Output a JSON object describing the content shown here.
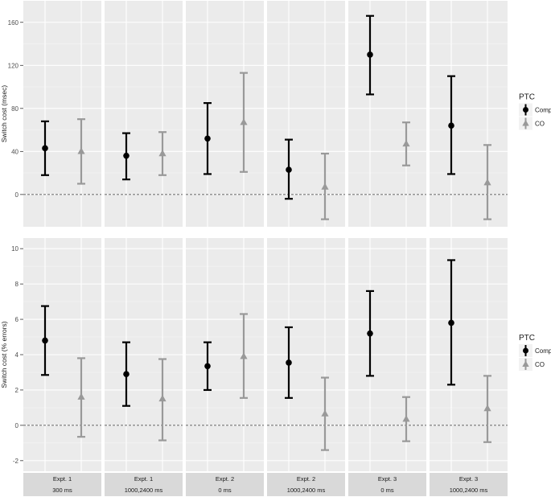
{
  "chart_data": [
    {
      "type": "errorbar",
      "title": "",
      "ylabel": "Switch cost (msec)",
      "ylim": [
        -30,
        180
      ],
      "yticks": [
        0,
        40,
        80,
        120,
        160
      ],
      "tick_labels": [
        "0",
        "40",
        "80",
        "120",
        "160"
      ],
      "reference_line": 0,
      "legend": {
        "title": "PTC",
        "position": "right",
        "entries": [
          "Compl",
          "CO"
        ]
      },
      "facets": [
        {
          "experiment": "Expt. 1",
          "condition": "300 ms",
          "series": [
            {
              "name": "Compl",
              "value": 43,
              "lower": 18,
              "upper": 68
            },
            {
              "name": "CO",
              "value": 40,
              "lower": 10,
              "upper": 70
            }
          ]
        },
        {
          "experiment": "Expt. 1",
          "condition": "1000,2400 ms",
          "series": [
            {
              "name": "Compl",
              "value": 36,
              "lower": 14,
              "upper": 57
            },
            {
              "name": "CO",
              "value": 38,
              "lower": 18,
              "upper": 58
            }
          ]
        },
        {
          "experiment": "Expt. 2",
          "condition": "0 ms",
          "series": [
            {
              "name": "Compl",
              "value": 52,
              "lower": 19,
              "upper": 85
            },
            {
              "name": "CO",
              "value": 67,
              "lower": 21,
              "upper": 113
            }
          ]
        },
        {
          "experiment": "Expt. 2",
          "condition": "1000,2400 ms",
          "series": [
            {
              "name": "Compl",
              "value": 23,
              "lower": -4,
              "upper": 51
            },
            {
              "name": "CO",
              "value": 7,
              "lower": -23,
              "upper": 38
            }
          ]
        },
        {
          "experiment": "Expt. 3",
          "condition": "0 ms",
          "series": [
            {
              "name": "Compl",
              "value": 130,
              "lower": 93,
              "upper": 166
            },
            {
              "name": "CO",
              "value": 47,
              "lower": 27,
              "upper": 67
            }
          ]
        },
        {
          "experiment": "Expt. 3",
          "condition": "1000,2400 ms",
          "series": [
            {
              "name": "Compl",
              "value": 64,
              "lower": 19,
              "upper": 110
            },
            {
              "name": "CO",
              "value": 11,
              "lower": -23,
              "upper": 46
            }
          ]
        }
      ]
    },
    {
      "type": "errorbar",
      "title": "",
      "ylabel": "Switch cost (% errors)",
      "ylim": [
        -2.6,
        10.6
      ],
      "yticks": [
        -2,
        0,
        2,
        4,
        6,
        8,
        10
      ],
      "tick_labels": [
        "-2",
        "0",
        "2",
        "4",
        "6",
        "8",
        "10"
      ],
      "reference_line": 0,
      "legend": {
        "title": "PTC",
        "position": "right",
        "entries": [
          "Compl",
          "CO"
        ]
      },
      "facets": [
        {
          "experiment": "Expt. 1",
          "condition": "300 ms",
          "series": [
            {
              "name": "Compl",
              "value": 4.8,
              "lower": 2.85,
              "upper": 6.75
            },
            {
              "name": "CO",
              "value": 1.6,
              "lower": -0.65,
              "upper": 3.8
            }
          ]
        },
        {
          "experiment": "Expt. 1",
          "condition": "1000,2400 ms",
          "series": [
            {
              "name": "Compl",
              "value": 2.9,
              "lower": 1.1,
              "upper": 4.7
            },
            {
              "name": "CO",
              "value": 1.5,
              "lower": -0.85,
              "upper": 3.75
            }
          ]
        },
        {
          "experiment": "Expt. 2",
          "condition": "0 ms",
          "series": [
            {
              "name": "Compl",
              "value": 3.35,
              "lower": 2.0,
              "upper": 4.7
            },
            {
              "name": "CO",
              "value": 3.9,
              "lower": 1.55,
              "upper": 6.3
            }
          ]
        },
        {
          "experiment": "Expt. 2",
          "condition": "1000,2400 ms",
          "series": [
            {
              "name": "Compl",
              "value": 3.55,
              "lower": 1.55,
              "upper": 5.55
            },
            {
              "name": "CO",
              "value": 0.65,
              "lower": -1.4,
              "upper": 2.7
            }
          ]
        },
        {
          "experiment": "Expt. 3",
          "condition": "0 ms",
          "series": [
            {
              "name": "Compl",
              "value": 5.2,
              "lower": 2.8,
              "upper": 7.6
            },
            {
              "name": "CO",
              "value": 0.35,
              "lower": -0.9,
              "upper": 1.6
            }
          ]
        },
        {
          "experiment": "Expt. 3",
          "condition": "1000,2400 ms",
          "series": [
            {
              "name": "Compl",
              "value": 5.8,
              "lower": 2.3,
              "upper": 9.35
            },
            {
              "name": "CO",
              "value": 0.95,
              "lower": -0.95,
              "upper": 2.8
            }
          ]
        }
      ]
    }
  ],
  "colors": {
    "Compl": "#000000",
    "CO": "#999999"
  }
}
